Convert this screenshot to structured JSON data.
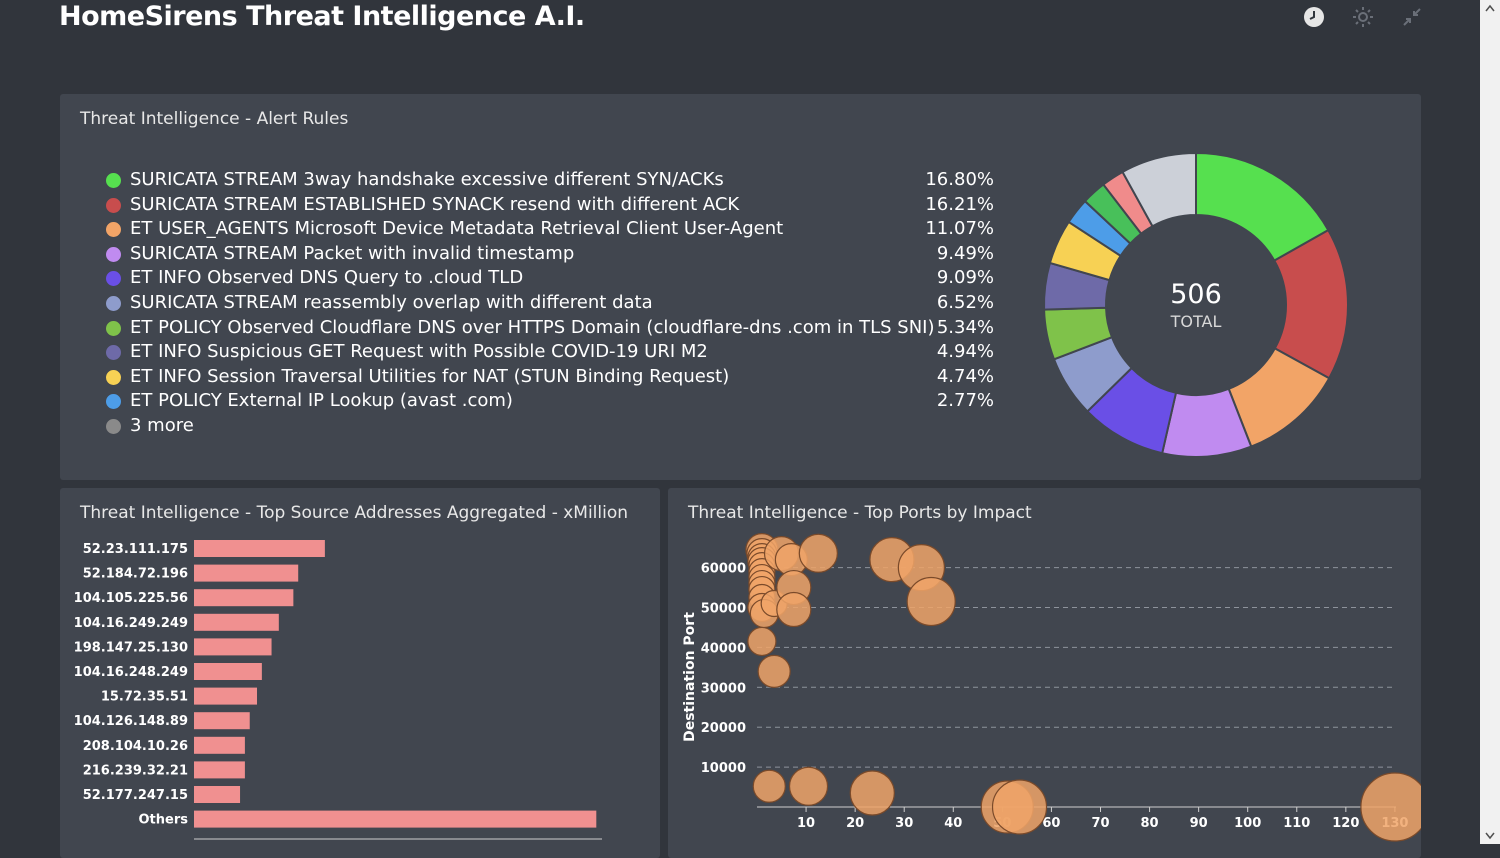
{
  "header": {
    "title": "HomeSirens Threat Intelligence A.I.",
    "icons": [
      "clock-icon",
      "sun-icon",
      "collapse-icon"
    ]
  },
  "panels": {
    "rules": {
      "title": "Threat Intelligence - Alert Rules"
    },
    "sources": {
      "title": "Threat Intelligence - Top Source Addresses Aggregated - xMillion"
    },
    "ports": {
      "title": "Threat Intelligence - Top Ports by Impact"
    }
  },
  "colors": {
    "background": "#31353c",
    "panel": "#41464f",
    "bar": "#f09090",
    "bubble": "#f0a468"
  },
  "chart_data": [
    {
      "type": "pie",
      "title": "Threat Intelligence - Alert Rules",
      "center_value": "506",
      "center_label": "TOTAL",
      "slices": [
        {
          "label": "SURICATA STREAM 3way handshake excessive different SYN/ACKs",
          "pct_text": "16.80%",
          "value": 16.8,
          "color": "#56e04f"
        },
        {
          "label": "SURICATA STREAM ESTABLISHED SYNACK resend with different ACK",
          "pct_text": "16.21%",
          "value": 16.21,
          "color": "#c84d4d"
        },
        {
          "label": "ET USER_AGENTS Microsoft Device Metadata Retrieval Client User-Agent",
          "pct_text": "11.07%",
          "value": 11.07,
          "color": "#f2a467"
        },
        {
          "label": "SURICATA STREAM Packet with invalid timestamp",
          "pct_text": "9.49%",
          "value": 9.49,
          "color": "#c08bf0"
        },
        {
          "label": "ET INFO Observed DNS Query to .cloud TLD",
          "pct_text": "9.09%",
          "value": 9.09,
          "color": "#6a4fe6"
        },
        {
          "label": "SURICATA STREAM reassembly overlap with different data",
          "pct_text": "6.52%",
          "value": 6.52,
          "color": "#8e9ccc"
        },
        {
          "label": "ET POLICY Observed Cloudflare DNS over HTTPS Domain (cloudflare-dns .com in TLS SNI)",
          "pct_text": "5.34%",
          "value": 5.34,
          "color": "#7fc24a"
        },
        {
          "label": "ET INFO Suspicious GET Request with Possible COVID-19 URI M2",
          "pct_text": "4.94%",
          "value": 4.94,
          "color": "#6e6aa8"
        },
        {
          "label": "ET INFO Session Traversal Utilities for NAT (STUN Binding Request)",
          "pct_text": "4.74%",
          "value": 4.74,
          "color": "#f7d154"
        },
        {
          "label": "ET POLICY External IP Lookup (avast .com)",
          "pct_text": "2.77%",
          "value": 2.77,
          "color": "#4d9de8"
        },
        {
          "label": "3 more",
          "pct_text": "",
          "value": 0,
          "color": "#8a8a8a"
        }
      ],
      "extra_slices": [
        {
          "value": 2.6,
          "color": "#48c05a"
        },
        {
          "value": 2.4,
          "color": "#f08b8b"
        },
        {
          "value": 8.03,
          "color": "#ccd0d8"
        }
      ]
    },
    {
      "type": "bar",
      "orientation": "horizontal",
      "title": "Threat Intelligence - Top Source Addresses Aggregated - xMillion",
      "categories": [
        "52.23.111.175",
        "52.184.72.196",
        "104.105.225.56",
        "104.16.249.249",
        "198.147.25.130",
        "104.16.248.249",
        "15.72.35.51",
        "104.126.148.89",
        "208.104.10.26",
        "216.239.32.21",
        "52.177.247.15",
        "Others"
      ],
      "values": [
        27,
        21.5,
        20.5,
        17.5,
        16,
        14,
        13,
        11.5,
        10.5,
        10.5,
        9.5,
        83
      ],
      "xlim": [
        0,
        85
      ]
    },
    {
      "type": "scatter",
      "title": "Threat Intelligence - Top Ports by Impact",
      "ylabel": "Destination Port",
      "xlabel": "",
      "xticks": [
        10,
        20,
        30,
        40,
        50,
        60,
        70,
        80,
        90,
        100,
        110,
        120,
        130
      ],
      "yticks": [
        10000,
        20000,
        30000,
        40000,
        50000,
        60000
      ],
      "xlim": [
        0,
        132
      ],
      "ylim": [
        0,
        66000
      ],
      "points": [
        {
          "x": 1,
          "y": 64500,
          "r": 16
        },
        {
          "x": 1,
          "y": 63500,
          "r": 15
        },
        {
          "x": 1,
          "y": 62500,
          "r": 14
        },
        {
          "x": 1,
          "y": 61500,
          "r": 14
        },
        {
          "x": 1,
          "y": 60500,
          "r": 13
        },
        {
          "x": 1,
          "y": 59000,
          "r": 13
        },
        {
          "x": 1,
          "y": 57500,
          "r": 13
        },
        {
          "x": 1,
          "y": 56000,
          "r": 13
        },
        {
          "x": 1,
          "y": 54500,
          "r": 13
        },
        {
          "x": 1,
          "y": 52500,
          "r": 13
        },
        {
          "x": 1,
          "y": 50000,
          "r": 14
        },
        {
          "x": 1.5,
          "y": 48500,
          "r": 14
        },
        {
          "x": 1,
          "y": 41500,
          "r": 14
        },
        {
          "x": 3.5,
          "y": 51000,
          "r": 13
        },
        {
          "x": 5,
          "y": 63500,
          "r": 17
        },
        {
          "x": 7,
          "y": 62000,
          "r": 16
        },
        {
          "x": 7.5,
          "y": 55000,
          "r": 17
        },
        {
          "x": 7.5,
          "y": 49500,
          "r": 17
        },
        {
          "x": 12.5,
          "y": 63600,
          "r": 19
        },
        {
          "x": 3.5,
          "y": 34000,
          "r": 16
        },
        {
          "x": 27.5,
          "y": 62000,
          "r": 22
        },
        {
          "x": 33.5,
          "y": 60000,
          "r": 23
        },
        {
          "x": 35.5,
          "y": 51500,
          "r": 24
        },
        {
          "x": 2.5,
          "y": 5200,
          "r": 16
        },
        {
          "x": 10.5,
          "y": 5200,
          "r": 19
        },
        {
          "x": 23.5,
          "y": 3500,
          "r": 22
        },
        {
          "x": 51,
          "y": 0,
          "r": 26
        },
        {
          "x": 53.5,
          "y": 0,
          "r": 27
        },
        {
          "x": 130,
          "y": 0,
          "r": 34
        }
      ]
    }
  ]
}
